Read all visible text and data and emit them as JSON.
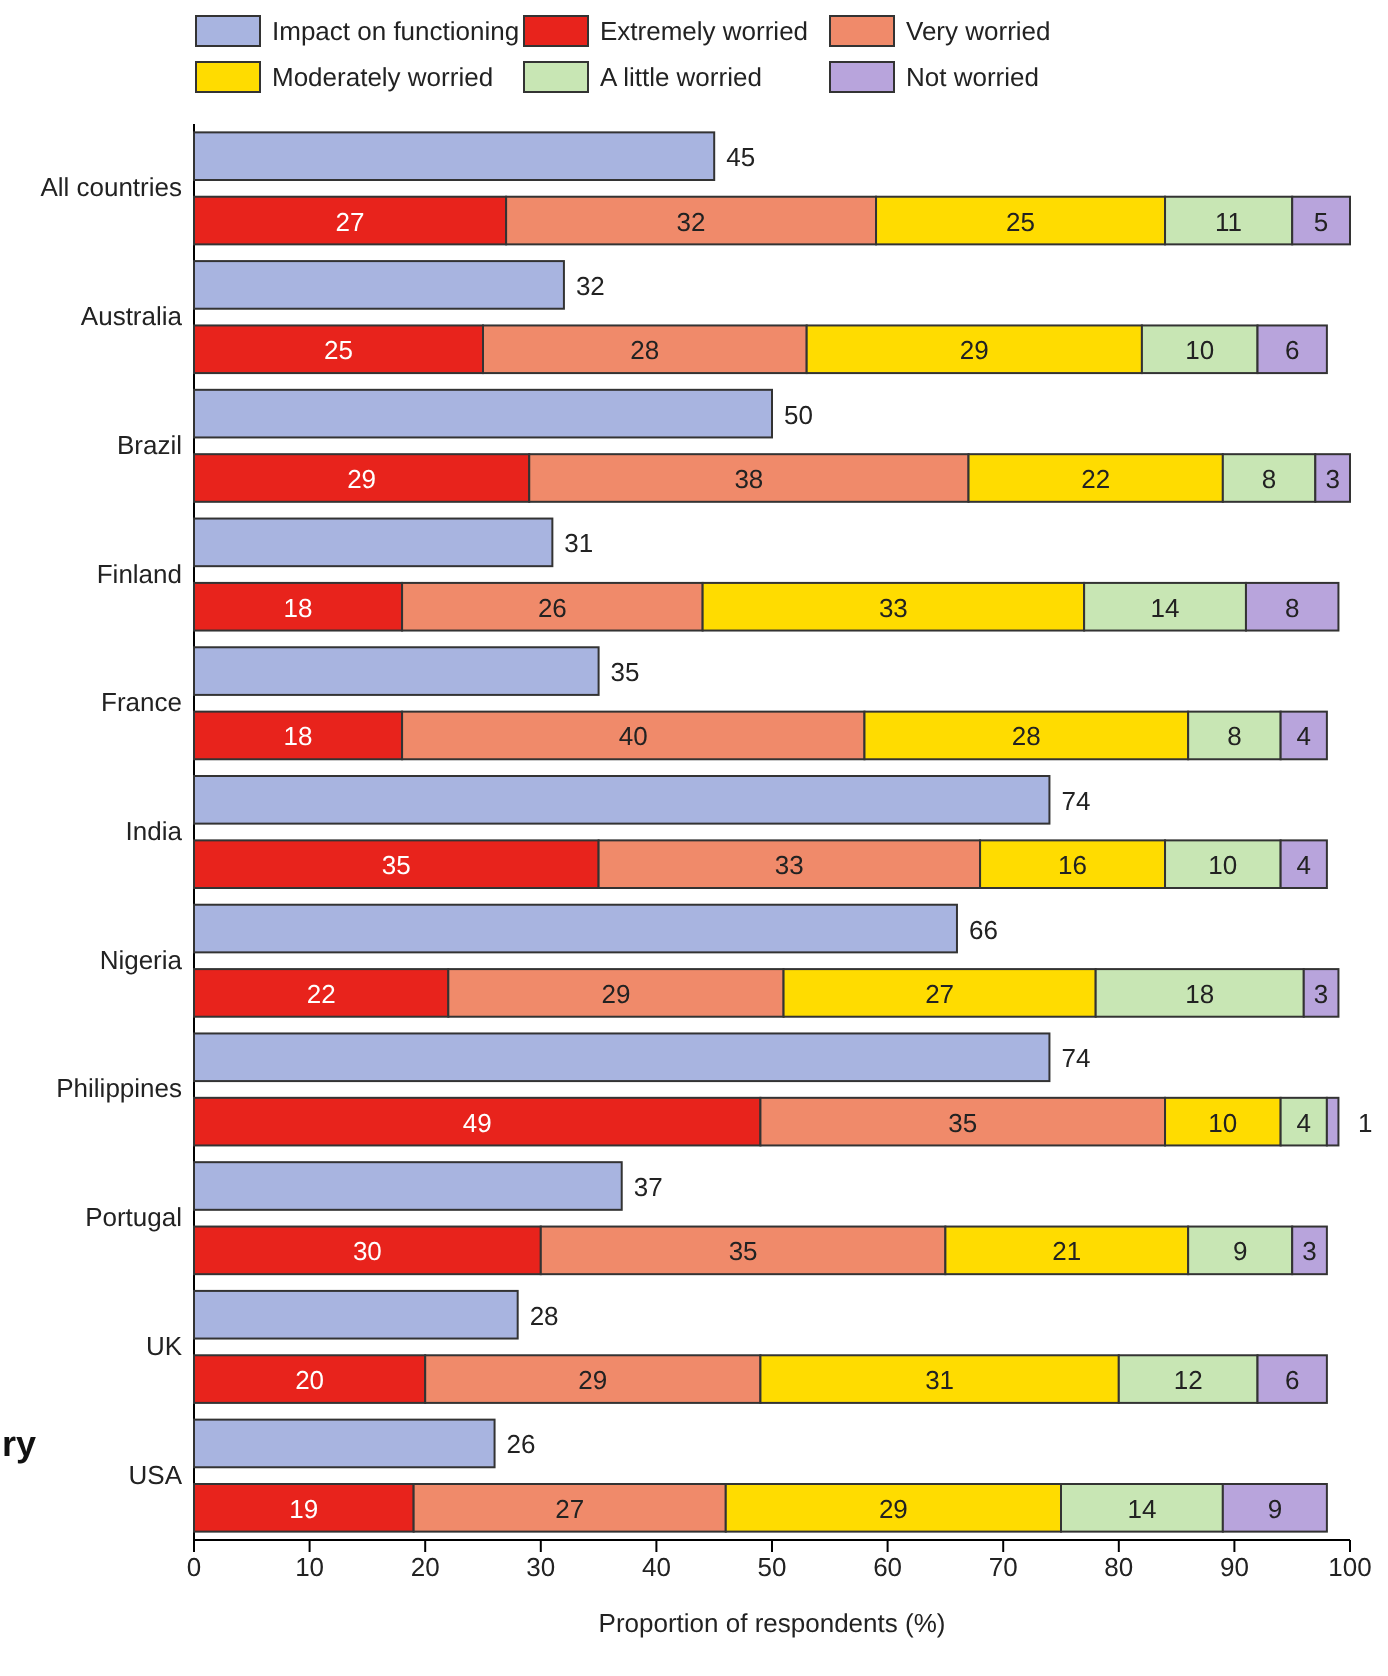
{
  "chart_data": {
    "type": "bar",
    "orientation": "horizontal",
    "stacked": true,
    "xlabel": "Proportion of respondents (%)",
    "xlim": [
      0,
      100
    ],
    "xticks": [
      0,
      10,
      20,
      30,
      40,
      50,
      60,
      70,
      80,
      90,
      100
    ],
    "legend": "top",
    "grid": false,
    "data_labels": true,
    "categories": [
      "All countries",
      null,
      "Australia",
      null,
      "Brazil",
      null,
      "Finland",
      null,
      "France",
      null,
      "India",
      null,
      "Nigeria",
      null,
      "Philippines",
      null,
      "Portugal",
      null,
      "UK",
      null,
      "USA",
      null
    ],
    "series": [
      {
        "name": "Impact on functioning",
        "color": "#a8b4e0",
        "values": [
          45,
          null,
          32,
          null,
          50,
          null,
          31,
          null,
          35,
          null,
          74,
          null,
          66,
          null,
          74,
          null,
          37,
          null,
          28,
          null,
          26,
          null
        ]
      },
      {
        "name": "Extremely worried",
        "color": "#e8231c",
        "values": [
          null,
          27,
          null,
          25,
          null,
          29,
          null,
          18,
          null,
          18,
          null,
          35,
          null,
          22,
          null,
          49,
          null,
          30,
          null,
          20,
          null,
          19
        ]
      },
      {
        "name": "Very worried",
        "color": "#f08a6a",
        "values": [
          null,
          32,
          null,
          28,
          null,
          38,
          null,
          26,
          null,
          40,
          null,
          33,
          null,
          29,
          null,
          35,
          null,
          35,
          null,
          29,
          null,
          27
        ]
      },
      {
        "name": "Moderately worried",
        "color": "#ffdc00",
        "values": [
          null,
          25,
          null,
          29,
          null,
          22,
          null,
          33,
          null,
          28,
          null,
          16,
          null,
          27,
          null,
          10,
          null,
          21,
          null,
          31,
          null,
          29
        ]
      },
      {
        "name": "A little worried",
        "color": "#c8e6b4",
        "values": [
          null,
          11,
          null,
          10,
          null,
          8,
          null,
          14,
          null,
          8,
          null,
          10,
          null,
          18,
          null,
          4,
          null,
          9,
          null,
          12,
          null,
          14
        ]
      },
      {
        "name": "Not worried",
        "color": "#b8a4dc",
        "values": [
          null,
          5,
          null,
          6,
          null,
          3,
          null,
          8,
          null,
          4,
          null,
          4,
          null,
          3,
          null,
          1,
          null,
          3,
          null,
          6,
          null,
          9
        ]
      }
    ],
    "annotations": [
      "ry"
    ]
  }
}
